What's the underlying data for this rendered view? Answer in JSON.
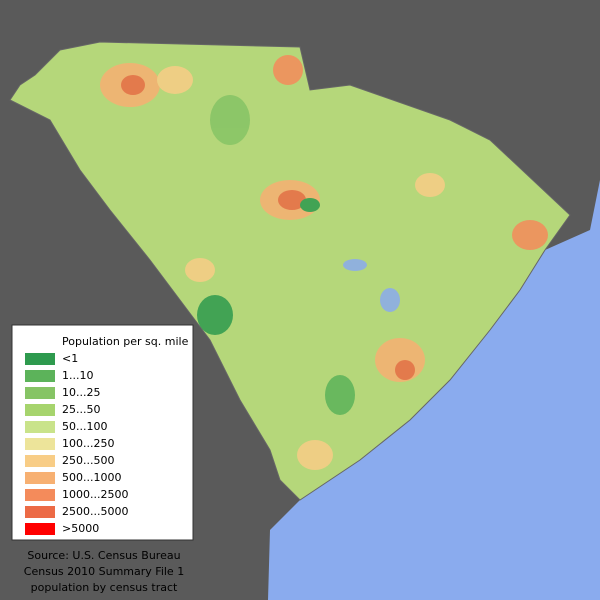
{
  "legend": {
    "title": "Population per sq. mile",
    "items": [
      {
        "label": "<1",
        "color": "#2e9a4e"
      },
      {
        "label": "1...10",
        "color": "#5cb35a"
      },
      {
        "label": "10...25",
        "color": "#86c465"
      },
      {
        "label": "25...50",
        "color": "#a6d46d"
      },
      {
        "label": "50...100",
        "color": "#c9e38a"
      },
      {
        "label": "100...250",
        "color": "#ede49a"
      },
      {
        "label": "250...500",
        "color": "#f8cd86"
      },
      {
        "label": "500...1000",
        "color": "#f7b072"
      },
      {
        "label": "1000...2500",
        "color": "#f48b5b"
      },
      {
        "label": "2500...5000",
        "color": "#ec6a45"
      },
      {
        "label": ">5000",
        "color": "#ff0000"
      }
    ]
  },
  "source": [
    "Source: U.S. Census Bureau",
    "Census 2010 Summary File 1",
    "population by census tract"
  ]
}
